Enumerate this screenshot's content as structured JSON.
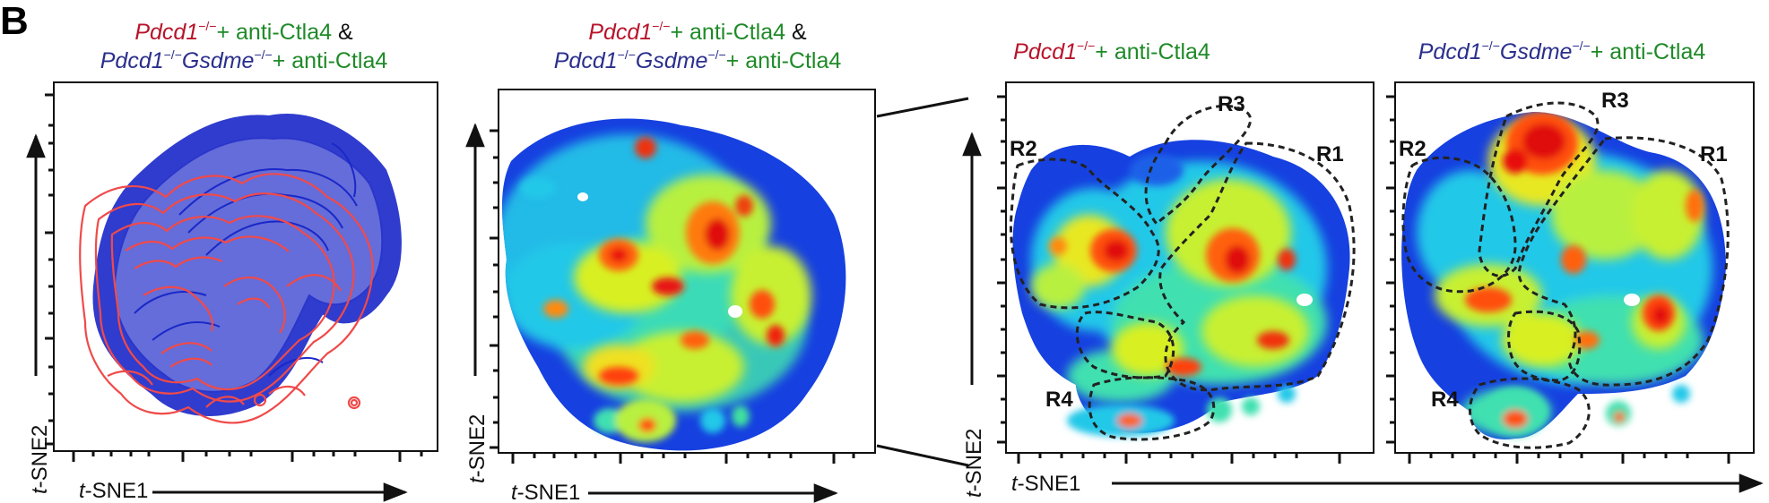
{
  "panel_letter": "B",
  "colors": {
    "red_label": "#b8142a",
    "blue_label": "#2a2f8c",
    "green_label": "#1f8a28",
    "contour_red": "#f04a4a",
    "contour_blue": "#1a28c8",
    "axis": "#111111"
  },
  "panels": [
    {
      "id": "p1",
      "kind": "contour-overlay",
      "title_line1": {
        "gene": "Pdcd1",
        "sup": "−/−",
        "treat": "+ anti-Ctla4",
        "amp": " &"
      },
      "title_line2": {
        "gene1": "Pdcd1",
        "sup1": "−/−",
        "gene2": "Gsdme",
        "sup2": "−/−",
        "treat": "+ anti-Ctla4"
      },
      "xlabel": {
        "prefix": "t",
        "rest": "-SNE1"
      },
      "ylabel": {
        "prefix": "t",
        "rest": "-SNE2"
      }
    },
    {
      "id": "p2",
      "kind": "density",
      "title_line1": {
        "gene": "Pdcd1",
        "sup": "−/−",
        "treat": "+ anti-Ctla4",
        "amp": " &"
      },
      "title_line2": {
        "gene1": "Pdcd1",
        "sup1": "−/−",
        "gene2": "Gsdme",
        "sup2": "−/−",
        "treat": "+ anti-Ctla4"
      },
      "xlabel": {
        "prefix": "t",
        "rest": "-SNE1"
      },
      "ylabel": {
        "prefix": "t",
        "rest": "-SNE2"
      }
    },
    {
      "id": "p3",
      "kind": "density-regions",
      "title": {
        "gene": "Pdcd1",
        "sup": "−/−",
        "treat": "+ anti-Ctla4"
      },
      "regions": [
        "R1",
        "R2",
        "R3",
        "R4"
      ],
      "ylabel": {
        "prefix": "t",
        "rest": "-SNE2"
      }
    },
    {
      "id": "p4",
      "kind": "density-regions",
      "title": {
        "gene1": "Pdcd1",
        "sup1": "−/−",
        "gene2": "Gsdme",
        "sup2": "−/−",
        "treat": "+ anti-Ctla4"
      },
      "regions": [
        "R1",
        "R2",
        "R3",
        "R4"
      ]
    }
  ],
  "shared_xlabel": {
    "prefix": "t",
    "rest": "-SNE1"
  }
}
